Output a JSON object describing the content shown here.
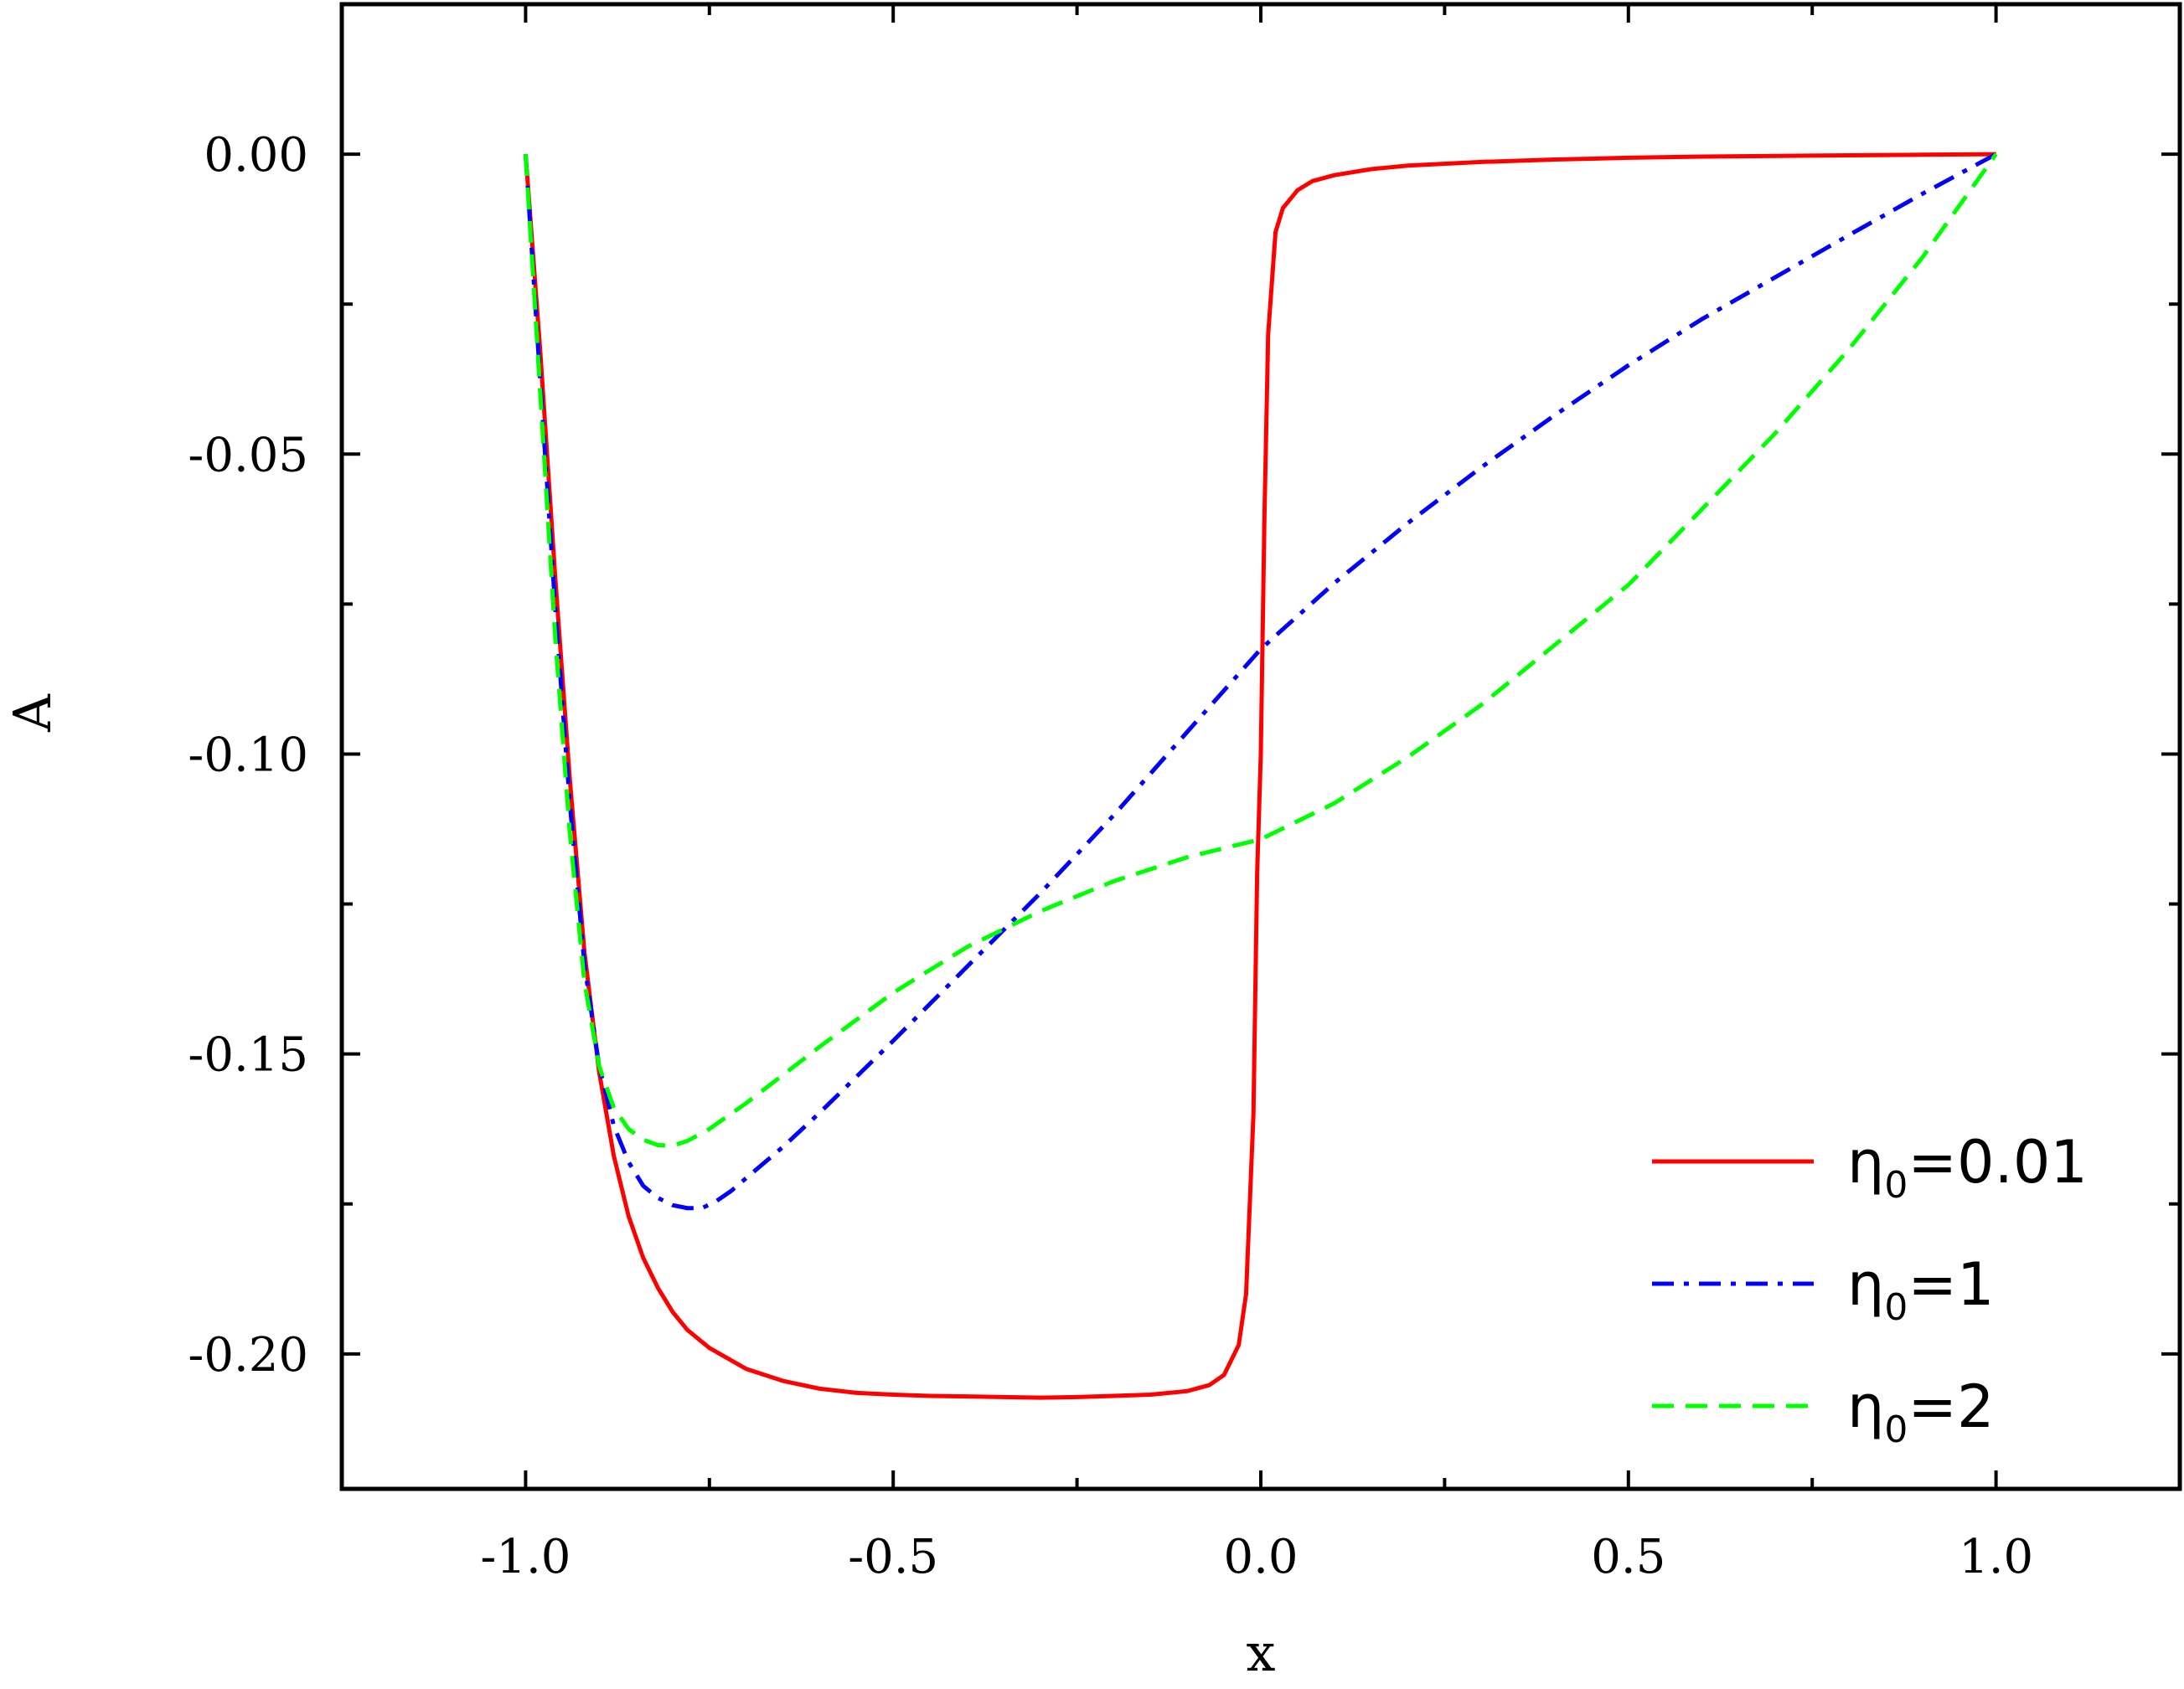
{
  "chart_data": {
    "type": "line",
    "title": "",
    "xlabel": "x",
    "ylabel": "A",
    "xlim": [
      -1.25,
      1.25
    ],
    "ylim": [
      -0.2225,
      0.025
    ],
    "x_ticks": [
      -1.0,
      -0.5,
      0.0,
      0.5,
      1.0
    ],
    "x_tick_labels": [
      "-1.0",
      "-0.5",
      "0.0",
      "0.5",
      "1.0"
    ],
    "y_ticks": [
      0.0,
      -0.05,
      -0.1,
      -0.15,
      -0.2
    ],
    "y_tick_labels": [
      "0.00",
      "-0.05",
      "-0.10",
      "-0.15",
      "-0.20"
    ],
    "grid": false,
    "legend_position": "bottom-right",
    "series": [
      {
        "name": "η0=0.01",
        "legend_main": "η",
        "legend_sub": "0",
        "legend_rest": "=0.01",
        "color": "#ff0000",
        "style": "solid",
        "x": [
          -1.0,
          -0.98,
          -0.96,
          -0.94,
          -0.92,
          -0.9,
          -0.88,
          -0.86,
          -0.84,
          -0.82,
          -0.8,
          -0.78,
          -0.75,
          -0.7,
          -0.65,
          -0.6,
          -0.55,
          -0.5,
          -0.45,
          -0.4,
          -0.35,
          -0.3,
          -0.25,
          -0.2,
          -0.15,
          -0.1,
          -0.07,
          -0.05,
          -0.03,
          -0.02,
          -0.01,
          -0.005,
          0.0,
          0.005,
          0.01,
          0.02,
          0.03,
          0.05,
          0.07,
          0.1,
          0.15,
          0.2,
          0.3,
          0.4,
          0.5,
          0.6,
          0.7,
          0.8,
          0.9,
          1.0
        ],
        "y": [
          0.0,
          -0.033,
          -0.07,
          -0.104,
          -0.133,
          -0.153,
          -0.167,
          -0.177,
          -0.184,
          -0.189,
          -0.193,
          -0.196,
          -0.199,
          -0.2025,
          -0.2045,
          -0.2058,
          -0.2065,
          -0.2068,
          -0.207,
          -0.2071,
          -0.2072,
          -0.2073,
          -0.2072,
          -0.207,
          -0.2068,
          -0.2062,
          -0.2052,
          -0.2035,
          -0.1985,
          -0.19,
          -0.16,
          -0.12,
          -0.1,
          -0.06,
          -0.03,
          -0.013,
          -0.009,
          -0.006,
          -0.0045,
          -0.0035,
          -0.0025,
          -0.0019,
          -0.0013,
          -0.0009,
          -0.0006,
          -0.0004,
          -0.0003,
          -0.0002,
          -0.0001,
          0.0
        ]
      },
      {
        "name": "η0=1",
        "legend_main": "η",
        "legend_sub": "0",
        "legend_rest": "=1",
        "color": "#0000ff",
        "style": "dashdot",
        "x": [
          -1.0,
          -0.98,
          -0.96,
          -0.94,
          -0.92,
          -0.9,
          -0.88,
          -0.86,
          -0.84,
          -0.82,
          -0.8,
          -0.78,
          -0.76,
          -0.74,
          -0.72,
          -0.7,
          -0.65,
          -0.6,
          -0.5,
          -0.4,
          -0.3,
          -0.2,
          -0.1,
          0.0,
          0.1,
          0.2,
          0.3,
          0.4,
          0.5,
          0.6,
          0.7,
          0.8,
          0.9,
          1.0
        ],
        "y": [
          0.0,
          -0.038,
          -0.075,
          -0.108,
          -0.135,
          -0.152,
          -0.162,
          -0.168,
          -0.172,
          -0.174,
          -0.1752,
          -0.1757,
          -0.1757,
          -0.1745,
          -0.1728,
          -0.1707,
          -0.1655,
          -0.1598,
          -0.1478,
          -0.1355,
          -0.1232,
          -0.1102,
          -0.0963,
          -0.0825,
          -0.0715,
          -0.0615,
          -0.0522,
          -0.0435,
          -0.0352,
          -0.0275,
          -0.0205,
          -0.0135,
          -0.0066,
          0.0
        ]
      },
      {
        "name": "η0=2",
        "legend_main": "η",
        "legend_sub": "0",
        "legend_rest": "=2",
        "color": "#00ff00",
        "style": "dashed",
        "x": [
          -1.0,
          -0.98,
          -0.96,
          -0.94,
          -0.92,
          -0.9,
          -0.88,
          -0.86,
          -0.84,
          -0.82,
          -0.8,
          -0.78,
          -0.75,
          -0.7,
          -0.65,
          -0.6,
          -0.5,
          -0.4,
          -0.3,
          -0.2,
          -0.1,
          0.0,
          0.1,
          0.2,
          0.3,
          0.4,
          0.5,
          0.6,
          0.7,
          0.8,
          0.9,
          1.0
        ],
        "y": [
          0.0,
          -0.04,
          -0.08,
          -0.113,
          -0.138,
          -0.152,
          -0.159,
          -0.1625,
          -0.1643,
          -0.1652,
          -0.1653,
          -0.1645,
          -0.1625,
          -0.1582,
          -0.1535,
          -0.1488,
          -0.1398,
          -0.1322,
          -0.1262,
          -0.1212,
          -0.1172,
          -0.1142,
          -0.1082,
          -0.1005,
          -0.0918,
          -0.0818,
          -0.0718,
          -0.0592,
          -0.0465,
          -0.0325,
          -0.0172,
          0.0
        ]
      }
    ]
  }
}
